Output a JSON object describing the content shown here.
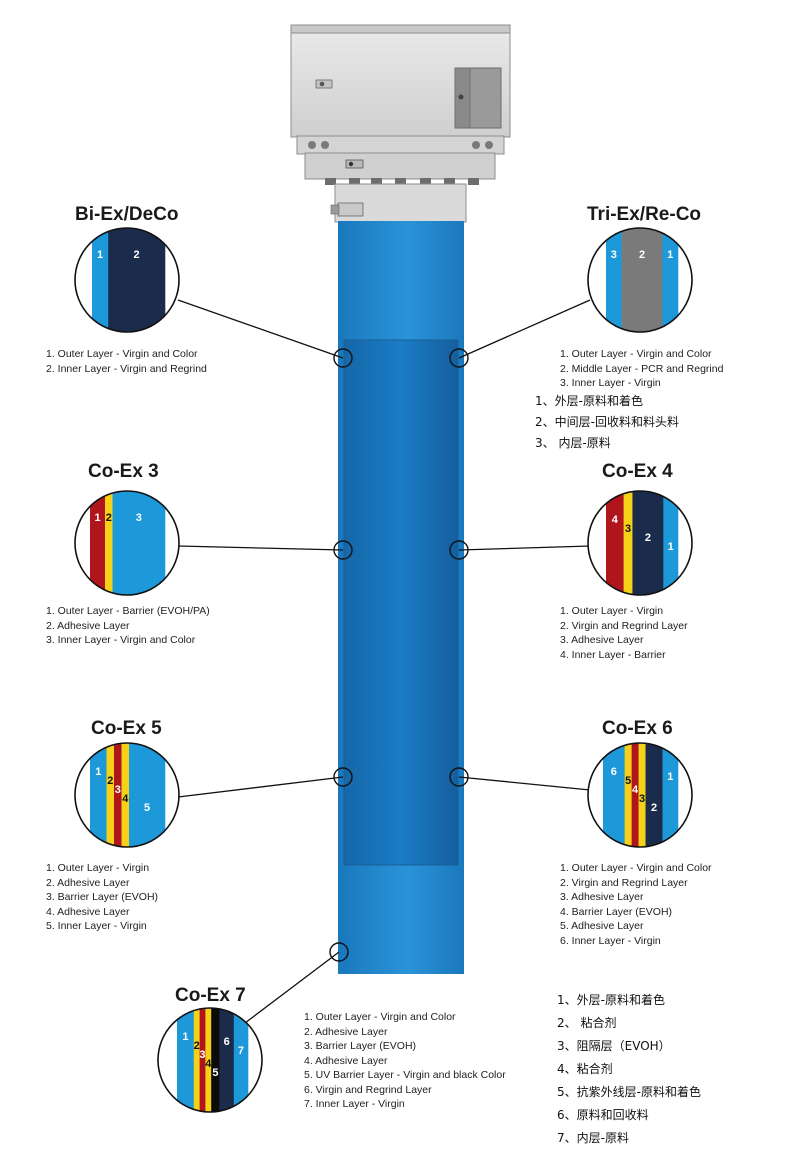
{
  "colors": {
    "blue": "#1d98d8",
    "navy": "#1b2b4b",
    "gray": "#7a7a7a",
    "red": "#b0151e",
    "yellow": "#f5d218",
    "black": "#0b0b0b",
    "tube": "#1b7fc4",
    "machine": "#dcdcdc"
  },
  "panels": {
    "bi_ex": {
      "title": "Bi-Ex/DeCo",
      "legend": [
        "1. Outer Layer - Virgin and Color",
        "2. Inner Layer - Virgin and Regrind"
      ],
      "layers": [
        {
          "color": "blue",
          "width": 1,
          "label": "1"
        },
        {
          "color": "navy",
          "width": 3.5,
          "label": "2"
        }
      ]
    },
    "tri_ex": {
      "title": "Tri-Ex/Re-Co",
      "legend": [
        "1. Outer Layer - Virgin and Color",
        "2. Middle Layer - PCR and Regrind",
        "3. Inner Layer - Virgin"
      ],
      "layers": [
        {
          "color": "blue",
          "width": 1,
          "label": "3"
        },
        {
          "color": "gray",
          "width": 2.6,
          "label": "2"
        },
        {
          "color": "blue",
          "width": 1,
          "label": "1"
        }
      ],
      "cn": [
        "1、外层-原料和着色",
        "2、中间层-回收料和料头料",
        "3、 内层-原料"
      ]
    },
    "coex3": {
      "title": "Co-Ex 3",
      "legend": [
        "1. Outer Layer - Barrier (EVOH/PA)",
        "2. Adhesive Layer",
        "3. Inner Layer - Virgin and Color"
      ],
      "layers": [
        {
          "color": "red",
          "width": 1,
          "label": "1"
        },
        {
          "color": "yellow",
          "width": 0.5,
          "label": "2"
        },
        {
          "color": "blue",
          "width": 3.5,
          "label": "3"
        }
      ]
    },
    "coex4": {
      "title": "Co-Ex 4",
      "legend": [
        "1. Outer Layer - Virgin",
        "2. Virgin and Regrind Layer",
        "3. Adhesive Layer",
        "4. Inner Layer - Barrier"
      ],
      "layers": [
        {
          "color": "red",
          "width": 1.2,
          "label": "4"
        },
        {
          "color": "yellow",
          "width": 0.6,
          "label": "3"
        },
        {
          "color": "navy",
          "width": 2.1,
          "label": "2"
        },
        {
          "color": "blue",
          "width": 1,
          "label": "1"
        }
      ]
    },
    "coex5": {
      "title": "Co-Ex 5",
      "legend": [
        "1. Outer Layer - Virgin",
        "2. Adhesive Layer",
        "3. Barrier Layer (EVOH)",
        "4. Adhesive Layer",
        "5. Inner Layer - Virgin"
      ],
      "layers": [
        {
          "color": "blue",
          "width": 1.1,
          "label": "1"
        },
        {
          "color": "yellow",
          "width": 0.5,
          "label": "2"
        },
        {
          "color": "red",
          "width": 0.5,
          "label": "3"
        },
        {
          "color": "yellow",
          "width": 0.5,
          "label": "4"
        },
        {
          "color": "blue",
          "width": 2.4,
          "label": "5"
        }
      ]
    },
    "coex6": {
      "title": "Co-Ex 6",
      "legend": [
        "1. Outer Layer - Virgin and Color",
        "2. Virgin and Regrind Layer",
        "3. Adhesive Layer",
        "4. Barrier Layer (EVOH)",
        "5. Adhesive Layer",
        "6. Inner Layer - Virgin"
      ],
      "layers": [
        {
          "color": "blue",
          "width": 1.4,
          "label": "6"
        },
        {
          "color": "yellow",
          "width": 0.45,
          "label": "5"
        },
        {
          "color": "red",
          "width": 0.45,
          "label": "4"
        },
        {
          "color": "yellow",
          "width": 0.45,
          "label": "3"
        },
        {
          "color": "navy",
          "width": 1.1,
          "label": "2"
        },
        {
          "color": "blue",
          "width": 1,
          "label": "1"
        }
      ]
    },
    "coex7": {
      "title": "Co-Ex 7",
      "legend": [
        "1. Outer Layer - Virgin and Color",
        "2. Adhesive Layer",
        "3. Barrier Layer (EVOH)",
        "4. Adhesive Layer",
        "5. UV Barrier Layer - Virgin and black Color",
        "6. Virgin and Regrind Layer",
        "7. Inner Layer - Virgin"
      ],
      "layers": [
        {
          "color": "blue",
          "width": 1.3,
          "label": "1"
        },
        {
          "color": "yellow",
          "width": 0.45,
          "label": "2"
        },
        {
          "color": "red",
          "width": 0.45,
          "label": "3"
        },
        {
          "color": "yellow",
          "width": 0.45,
          "label": "4"
        },
        {
          "color": "black",
          "width": 0.65,
          "label": "5"
        },
        {
          "color": "navy",
          "width": 1.1,
          "label": "6"
        },
        {
          "color": "blue",
          "width": 1.1,
          "label": "7"
        }
      ],
      "cn": [
        "1、外层-原料和着色",
        "2、 粘合剂",
        "3、阻隔层（EVOH）",
        "4、粘合剂",
        "5、抗紫外线层-原料和着色",
        "6、原料和回收料",
        "7、内层-原料"
      ]
    }
  }
}
